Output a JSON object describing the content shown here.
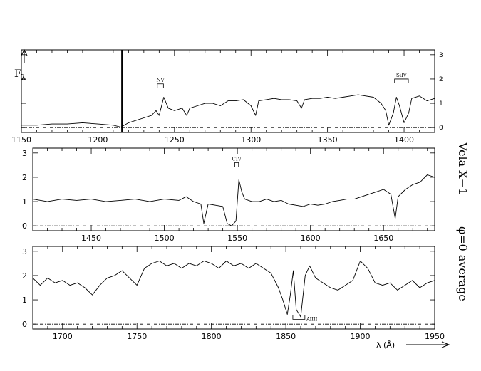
{
  "chart_data": [
    {
      "type": "line",
      "panel": 1,
      "x_range": [
        1150,
        1420
      ],
      "y_range": [
        -0.2,
        3.2
      ],
      "x_major_ticks": [
        1150,
        1200,
        1250,
        1300,
        1350,
        1400
      ],
      "y_ticks_right": [
        0,
        1,
        2,
        3
      ],
      "y_tick_labels_shown": false,
      "ylabel": "Fλ",
      "grid": false,
      "annotations": [
        {
          "label": "NV",
          "x_start": 1238.8,
          "x_end": 1242.8,
          "y": 1.8
        },
        {
          "label": "SiIV",
          "x_start": 1393.8,
          "x_end": 1402.8,
          "y": 2.0
        }
      ],
      "vertical_marker": {
        "x": 1215.7,
        "y_from": -0.2,
        "y_to": 3.2
      },
      "zero_line": 0,
      "spectrum": [
        [
          1150,
          0.1
        ],
        [
          1160,
          0.1
        ],
        [
          1170,
          0.15
        ],
        [
          1180,
          0.15
        ],
        [
          1190,
          0.2
        ],
        [
          1200,
          0.15
        ],
        [
          1210,
          0.1
        ],
        [
          1215,
          0.02
        ],
        [
          1220,
          0.2
        ],
        [
          1225,
          0.3
        ],
        [
          1230,
          0.4
        ],
        [
          1235,
          0.5
        ],
        [
          1238,
          0.7
        ],
        [
          1240,
          0.5
        ],
        [
          1243,
          1.25
        ],
        [
          1246,
          0.8
        ],
        [
          1250,
          0.7
        ],
        [
          1255,
          0.8
        ],
        [
          1258,
          0.5
        ],
        [
          1260,
          0.8
        ],
        [
          1265,
          0.9
        ],
        [
          1270,
          1.0
        ],
        [
          1275,
          1.0
        ],
        [
          1280,
          0.9
        ],
        [
          1285,
          1.1
        ],
        [
          1290,
          1.1
        ],
        [
          1295,
          1.15
        ],
        [
          1300,
          0.9
        ],
        [
          1303,
          0.5
        ],
        [
          1305,
          1.1
        ],
        [
          1310,
          1.15
        ],
        [
          1315,
          1.2
        ],
        [
          1320,
          1.15
        ],
        [
          1325,
          1.15
        ],
        [
          1330,
          1.1
        ],
        [
          1333,
          0.8
        ],
        [
          1335,
          1.15
        ],
        [
          1340,
          1.2
        ],
        [
          1345,
          1.2
        ],
        [
          1350,
          1.25
        ],
        [
          1355,
          1.2
        ],
        [
          1360,
          1.25
        ],
        [
          1365,
          1.3
        ],
        [
          1370,
          1.35
        ],
        [
          1375,
          1.3
        ],
        [
          1380,
          1.25
        ],
        [
          1385,
          1.0
        ],
        [
          1388,
          0.7
        ],
        [
          1390,
          0.1
        ],
        [
          1393,
          0.6
        ],
        [
          1395,
          1.25
        ],
        [
          1397,
          0.9
        ],
        [
          1400,
          0.2
        ],
        [
          1403,
          0.6
        ],
        [
          1405,
          1.2
        ],
        [
          1410,
          1.3
        ],
        [
          1415,
          1.1
        ],
        [
          1420,
          1.2
        ]
      ]
    },
    {
      "type": "line",
      "panel": 2,
      "x_range": [
        1410,
        1685
      ],
      "y_range": [
        -0.2,
        3.2
      ],
      "x_major_ticks": [
        1450,
        1500,
        1550,
        1600,
        1650
      ],
      "y_ticks": [
        0,
        1,
        2,
        3
      ],
      "y_tick_labels_shown": true,
      "grid": false,
      "annotations": [
        {
          "label": "CIV",
          "x_start": 1548.2,
          "x_end": 1550.8,
          "y": 2.6
        }
      ],
      "zero_line": 0,
      "spectrum": [
        [
          1410,
          1.1
        ],
        [
          1420,
          1.0
        ],
        [
          1430,
          1.1
        ],
        [
          1440,
          1.05
        ],
        [
          1450,
          1.1
        ],
        [
          1460,
          1.0
        ],
        [
          1470,
          1.05
        ],
        [
          1480,
          1.1
        ],
        [
          1490,
          1.0
        ],
        [
          1500,
          1.1
        ],
        [
          1510,
          1.05
        ],
        [
          1515,
          1.2
        ],
        [
          1520,
          1.0
        ],
        [
          1525,
          0.9
        ],
        [
          1527,
          0.1
        ],
        [
          1530,
          0.9
        ],
        [
          1535,
          0.85
        ],
        [
          1540,
          0.8
        ],
        [
          1543,
          0.1
        ],
        [
          1546,
          0.0
        ],
        [
          1549,
          0.2
        ],
        [
          1551,
          1.9
        ],
        [
          1553,
          1.4
        ],
        [
          1555,
          1.1
        ],
        [
          1560,
          1.0
        ],
        [
          1565,
          1.0
        ],
        [
          1570,
          1.1
        ],
        [
          1575,
          1.0
        ],
        [
          1580,
          1.05
        ],
        [
          1585,
          0.9
        ],
        [
          1590,
          0.85
        ],
        [
          1595,
          0.8
        ],
        [
          1600,
          0.9
        ],
        [
          1605,
          0.85
        ],
        [
          1610,
          0.9
        ],
        [
          1615,
          1.0
        ],
        [
          1620,
          1.05
        ],
        [
          1625,
          1.1
        ],
        [
          1630,
          1.1
        ],
        [
          1635,
          1.2
        ],
        [
          1640,
          1.3
        ],
        [
          1645,
          1.4
        ],
        [
          1650,
          1.5
        ],
        [
          1655,
          1.3
        ],
        [
          1658,
          0.3
        ],
        [
          1660,
          1.2
        ],
        [
          1665,
          1.5
        ],
        [
          1670,
          1.7
        ],
        [
          1675,
          1.8
        ],
        [
          1680,
          2.1
        ],
        [
          1685,
          2.0
        ]
      ]
    },
    {
      "type": "line",
      "panel": 3,
      "x_range": [
        1680,
        1950
      ],
      "y_range": [
        -0.2,
        3.2
      ],
      "x_major_ticks": [
        1700,
        1750,
        1800,
        1850,
        1900,
        1950
      ],
      "y_ticks": [
        0,
        1,
        2,
        3
      ],
      "y_tick_labels_shown": true,
      "xlabel": "λ (Å)",
      "grid": false,
      "annotations": [
        {
          "label": "AlIII",
          "x_start": 1854.7,
          "x_end": 1862.8,
          "y": 0.2
        }
      ],
      "zero_line": 0,
      "spectrum": [
        [
          1680,
          1.9
        ],
        [
          1685,
          1.6
        ],
        [
          1690,
          1.9
        ],
        [
          1695,
          1.7
        ],
        [
          1700,
          1.8
        ],
        [
          1705,
          1.6
        ],
        [
          1710,
          1.7
        ],
        [
          1715,
          1.5
        ],
        [
          1720,
          1.2
        ],
        [
          1725,
          1.6
        ],
        [
          1730,
          1.9
        ],
        [
          1735,
          2.0
        ],
        [
          1740,
          2.2
        ],
        [
          1745,
          1.9
        ],
        [
          1750,
          1.6
        ],
        [
          1755,
          2.3
        ],
        [
          1760,
          2.5
        ],
        [
          1765,
          2.6
        ],
        [
          1770,
          2.4
        ],
        [
          1775,
          2.5
        ],
        [
          1780,
          2.3
        ],
        [
          1785,
          2.5
        ],
        [
          1790,
          2.4
        ],
        [
          1795,
          2.6
        ],
        [
          1800,
          2.5
        ],
        [
          1805,
          2.3
        ],
        [
          1810,
          2.6
        ],
        [
          1815,
          2.4
        ],
        [
          1820,
          2.5
        ],
        [
          1825,
          2.3
        ],
        [
          1830,
          2.5
        ],
        [
          1835,
          2.3
        ],
        [
          1840,
          2.1
        ],
        [
          1845,
          1.5
        ],
        [
          1848,
          1.0
        ],
        [
          1851,
          0.4
        ],
        [
          1853,
          1.2
        ],
        [
          1855,
          2.2
        ],
        [
          1857,
          0.6
        ],
        [
          1860,
          0.3
        ],
        [
          1863,
          2.0
        ],
        [
          1866,
          2.4
        ],
        [
          1870,
          1.9
        ],
        [
          1875,
          1.7
        ],
        [
          1880,
          1.5
        ],
        [
          1885,
          1.4
        ],
        [
          1890,
          1.6
        ],
        [
          1895,
          1.8
        ],
        [
          1900,
          2.6
        ],
        [
          1905,
          2.3
        ],
        [
          1910,
          1.7
        ],
        [
          1915,
          1.6
        ],
        [
          1920,
          1.7
        ],
        [
          1925,
          1.4
        ],
        [
          1930,
          1.6
        ],
        [
          1935,
          1.8
        ],
        [
          1940,
          1.5
        ],
        [
          1945,
          1.7
        ],
        [
          1950,
          1.8
        ]
      ]
    }
  ],
  "labels": {
    "y_axis_symbol": "F",
    "y_axis_subscript": "λ",
    "x_axis_label": "λ (Å)",
    "side_title_left": "Vela X−1",
    "side_title_right": "φ=0 average"
  }
}
